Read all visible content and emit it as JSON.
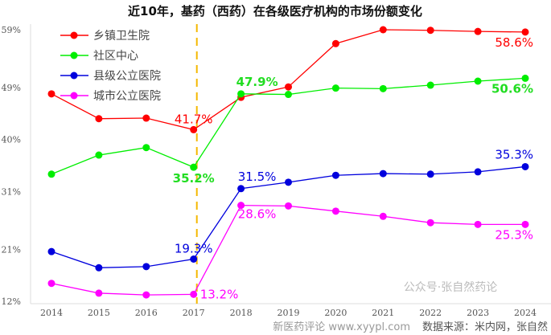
{
  "chart_data": {
    "type": "line",
    "title": "近10年，基药（西药）在各级医疗机构的市场份额变化",
    "x": [
      "2014",
      "2015",
      "2016",
      "2017",
      "2018",
      "2019",
      "2020",
      "2021",
      "2022",
      "2023",
      "2024"
    ],
    "yticks": [
      "12%",
      "21%",
      "31%",
      "40%",
      "49%",
      "59%"
    ],
    "ytick_values": [
      12,
      21,
      31,
      40,
      49,
      59
    ],
    "ylim": [
      12,
      59
    ],
    "legend_position": "top-left",
    "marker_line_year": "2017",
    "series": [
      {
        "name": "乡镇卫生院",
        "color": "#ff0000",
        "values": [
          47.9,
          43.6,
          43.7,
          41.7,
          47.3,
          49.1,
          56.6,
          59.0,
          58.9,
          58.7,
          58.6
        ],
        "labels": [
          {
            "index": 3,
            "text": "41.7%"
          },
          {
            "index": 10,
            "text": "58.6%"
          }
        ]
      },
      {
        "name": "社区中心",
        "color": "#00ee00",
        "values": [
          34.0,
          37.3,
          38.6,
          35.2,
          47.9,
          47.8,
          48.9,
          48.8,
          49.4,
          50.1,
          50.6
        ],
        "labels": [
          {
            "index": 3,
            "text": "35.2%"
          },
          {
            "index": 4,
            "text": "47.9%"
          },
          {
            "index": 10,
            "text": "50.6%"
          }
        ]
      },
      {
        "name": "县级公立医院",
        "color": "#0000dd",
        "values": [
          20.6,
          17.8,
          18.0,
          19.3,
          31.5,
          32.6,
          33.8,
          34.1,
          34.0,
          34.4,
          35.3
        ],
        "labels": [
          {
            "index": 3,
            "text": "19.3%"
          },
          {
            "index": 4,
            "text": "31.5%"
          },
          {
            "index": 10,
            "text": "35.3%"
          }
        ]
      },
      {
        "name": "城市公立医院",
        "color": "#ff00ff",
        "values": [
          15.1,
          13.4,
          13.1,
          13.2,
          28.6,
          28.5,
          27.6,
          26.7,
          25.6,
          25.3,
          25.3
        ],
        "labels": [
          {
            "index": 3,
            "text": "13.2%"
          },
          {
            "index": 4,
            "text": "28.6%"
          },
          {
            "index": 10,
            "text": "25.3%"
          }
        ]
      }
    ],
    "source": "数据来源：米内网，张自然",
    "watermark": "公众号·张自然药论",
    "watermark2": "新医药评论 www.xyypl.com"
  }
}
